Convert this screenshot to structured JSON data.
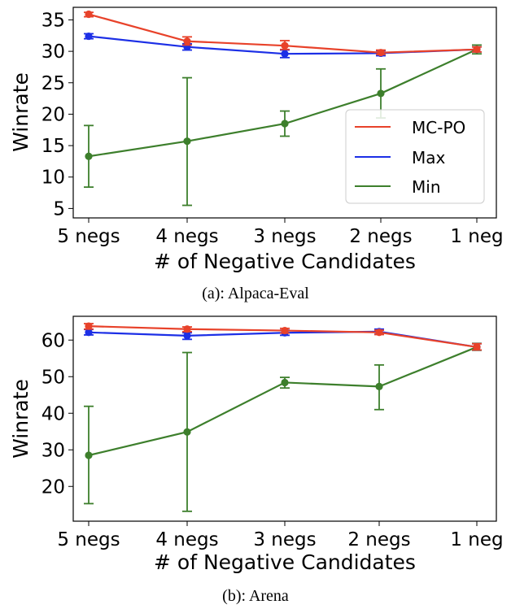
{
  "chart_data": [
    {
      "type": "line",
      "caption": "(a): Alpaca-Eval",
      "categories": [
        "5 negs",
        "4 negs",
        "3 negs",
        "2 negs",
        "1 neg"
      ],
      "xlabel": "# of Negative Candidates",
      "ylabel": "Winrate",
      "ylim": [
        3.5,
        37
      ],
      "yticks": [
        5,
        10,
        15,
        20,
        25,
        30,
        35
      ],
      "legend": "center-right",
      "series": [
        {
          "name": "MC-PO",
          "color": "#e8422a",
          "values": [
            35.9,
            31.6,
            30.9,
            29.8,
            30.3
          ],
          "err_low": [
            35.5,
            31.0,
            30.3,
            29.5,
            29.9
          ],
          "err_high": [
            36.2,
            32.3,
            31.7,
            30.2,
            30.7
          ]
        },
        {
          "name": "Max",
          "color": "#1c2fe6",
          "values": [
            32.4,
            30.7,
            29.6,
            29.7,
            30.3
          ],
          "err_low": [
            32.0,
            30.2,
            29.0,
            29.3,
            29.9
          ],
          "err_high": [
            32.8,
            31.2,
            30.2,
            30.1,
            30.7
          ]
        },
        {
          "name": "Min",
          "color": "#3d7f2c",
          "values": [
            13.3,
            15.7,
            18.5,
            23.3,
            30.3
          ],
          "err_low": [
            8.4,
            5.5,
            16.5,
            19.4,
            29.6
          ],
          "err_high": [
            18.2,
            25.8,
            20.5,
            27.2,
            31.0
          ]
        }
      ]
    },
    {
      "type": "line",
      "caption": "(b): Arena",
      "categories": [
        "5 negs",
        "4 negs",
        "3 negs",
        "2 negs",
        "1 neg"
      ],
      "xlabel": "# of Negative Candidates",
      "ylabel": "Winrate",
      "ylim": [
        10.5,
        66.5
      ],
      "yticks": [
        20,
        30,
        40,
        50,
        60
      ],
      "legend": "none",
      "series": [
        {
          "name": "MC-PO",
          "color": "#e8422a",
          "values": [
            63.8,
            63.0,
            62.6,
            62.1,
            58.1
          ],
          "err_low": [
            63.0,
            62.3,
            61.9,
            61.5,
            57.3
          ],
          "err_high": [
            64.5,
            63.6,
            63.2,
            62.7,
            59.0
          ]
        },
        {
          "name": "Max",
          "color": "#1c2fe6",
          "values": [
            62.1,
            61.2,
            62.0,
            62.3,
            58.1
          ],
          "err_low": [
            61.4,
            60.2,
            61.3,
            61.6,
            57.3
          ],
          "err_high": [
            62.9,
            62.0,
            62.7,
            63.0,
            59.0
          ]
        },
        {
          "name": "Min",
          "color": "#3d7f2c",
          "values": [
            28.5,
            34.9,
            48.4,
            47.3,
            58.1
          ],
          "err_low": [
            15.3,
            13.2,
            46.9,
            41.0,
            57.2
          ],
          "err_high": [
            41.9,
            56.6,
            49.8,
            53.2,
            59.1
          ]
        }
      ]
    }
  ]
}
